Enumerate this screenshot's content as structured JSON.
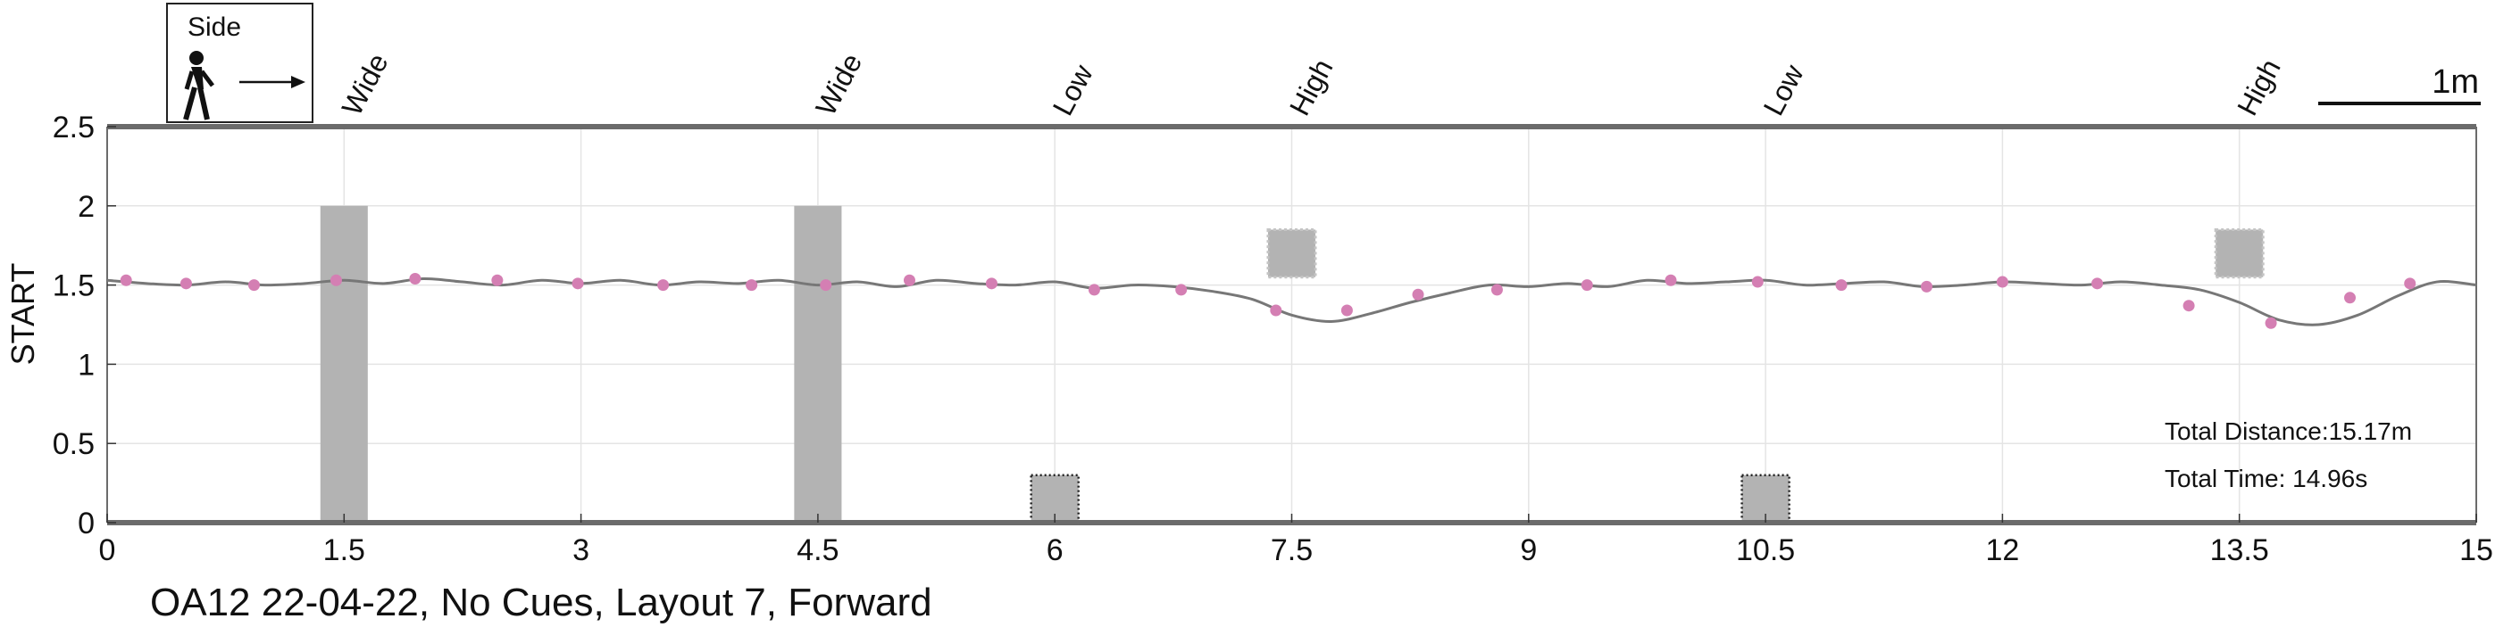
{
  "legend": {
    "label": "Side"
  },
  "scale_bar": {
    "label": "1m"
  },
  "caption": "OA12 22-04-22, No Cues, Layout 7, Forward",
  "info": {
    "total_distance": "Total Distance:15.17m",
    "total_time": "Total Time: 14.96s"
  },
  "chart_data": {
    "type": "line",
    "ylabel": "START",
    "xlim": [
      0,
      15
    ],
    "ylim": [
      0,
      2.5
    ],
    "x_ticks": [
      0,
      1.5,
      3,
      4.5,
      6,
      7.5,
      9,
      10.5,
      12,
      13.5,
      15
    ],
    "x_tick_labels": [
      "0",
      "1.5",
      "3",
      "4.5",
      "6",
      "7.5",
      "9",
      "10.5",
      "12",
      "13.5",
      "15"
    ],
    "y_ticks": [
      0,
      0.5,
      1,
      1.5,
      2,
      2.5
    ],
    "y_tick_labels": [
      "0",
      "0.5",
      "1",
      "1.5",
      "2",
      "2.5"
    ],
    "grid": true,
    "colors": {
      "path": "#777777",
      "markers": "#d47fb3",
      "obstacle": "#b3b3b3",
      "axis": "#6b6b6b"
    },
    "obstacles": [
      {
        "label": "Wide",
        "x0": 1.35,
        "x1": 1.65,
        "y0": 0,
        "y1": 2.0,
        "style": "solid"
      },
      {
        "label": "Wide",
        "x0": 4.35,
        "x1": 4.65,
        "y0": 0,
        "y1": 2.0,
        "style": "solid"
      },
      {
        "label": "Low",
        "x0": 5.85,
        "x1": 6.15,
        "y0": 0,
        "y1": 0.3,
        "style": "dotted"
      },
      {
        "label": "High",
        "x0": 7.35,
        "x1": 7.65,
        "y0": 1.55,
        "y1": 1.85,
        "style": "dotted"
      },
      {
        "label": "Low",
        "x0": 10.35,
        "x1": 10.65,
        "y0": 0,
        "y1": 0.3,
        "style": "dotted"
      },
      {
        "label": "High",
        "x0": 13.35,
        "x1": 13.65,
        "y0": 1.55,
        "y1": 1.85,
        "style": "dotted"
      }
    ],
    "path": {
      "x": [
        0,
        0.25,
        0.5,
        0.75,
        1.0,
        1.25,
        1.5,
        1.75,
        2.0,
        2.25,
        2.5,
        2.75,
        3.0,
        3.25,
        3.5,
        3.75,
        4.0,
        4.25,
        4.5,
        4.75,
        5.0,
        5.25,
        5.5,
        5.75,
        6.0,
        6.25,
        6.5,
        6.75,
        7.0,
        7.25,
        7.5,
        7.75,
        8.0,
        8.25,
        8.5,
        8.75,
        9.0,
        9.25,
        9.5,
        9.75,
        10.0,
        10.25,
        10.5,
        10.75,
        11.0,
        11.25,
        11.5,
        11.75,
        12.0,
        12.25,
        12.5,
        12.75,
        13.0,
        13.25,
        13.5,
        13.75,
        14.0,
        14.25,
        14.5,
        14.75,
        15.0
      ],
      "y": [
        1.53,
        1.51,
        1.5,
        1.52,
        1.5,
        1.51,
        1.53,
        1.51,
        1.54,
        1.52,
        1.5,
        1.53,
        1.51,
        1.53,
        1.5,
        1.52,
        1.51,
        1.53,
        1.5,
        1.52,
        1.49,
        1.53,
        1.51,
        1.5,
        1.52,
        1.48,
        1.5,
        1.49,
        1.46,
        1.41,
        1.31,
        1.27,
        1.32,
        1.39,
        1.45,
        1.5,
        1.49,
        1.51,
        1.49,
        1.53,
        1.51,
        1.52,
        1.53,
        1.5,
        1.51,
        1.52,
        1.49,
        1.5,
        1.52,
        1.51,
        1.5,
        1.52,
        1.5,
        1.47,
        1.39,
        1.28,
        1.25,
        1.31,
        1.43,
        1.52,
        1.5
      ]
    },
    "markers": {
      "x": [
        0.12,
        0.5,
        0.93,
        1.45,
        1.95,
        2.47,
        2.98,
        3.52,
        4.08,
        4.55,
        5.08,
        5.6,
        6.25,
        6.8,
        7.4,
        7.85,
        8.3,
        8.8,
        9.37,
        9.9,
        10.45,
        10.98,
        11.52,
        12.0,
        12.6,
        13.18,
        13.7,
        14.2,
        14.58
      ],
      "y": [
        1.53,
        1.51,
        1.5,
        1.53,
        1.54,
        1.53,
        1.51,
        1.5,
        1.5,
        1.5,
        1.53,
        1.51,
        1.47,
        1.47,
        1.34,
        1.34,
        1.44,
        1.47,
        1.5,
        1.53,
        1.52,
        1.5,
        1.49,
        1.52,
        1.51,
        1.37,
        1.26,
        1.42,
        1.51
      ]
    }
  }
}
